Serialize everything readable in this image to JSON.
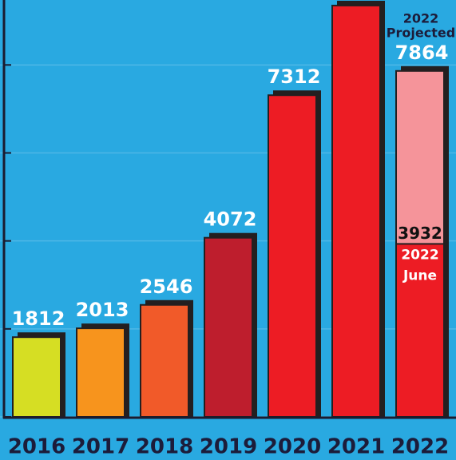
{
  "chart_data": {
    "type": "bar",
    "categories": [
      "2016",
      "2017",
      "2018",
      "2019",
      "2020",
      "2021",
      "2022"
    ],
    "values": [
      1812,
      2013,
      2546,
      4072,
      7312,
      9350,
      7864
    ],
    "value_labels": [
      "1812",
      "2013",
      "2546",
      "4072",
      "7312",
      null,
      "7864"
    ],
    "colors": [
      "#d6de23",
      "#f7941d",
      "#f15a29",
      "#be1e2d",
      "#ed1c24",
      "#ed1c24",
      "#f5949a"
    ],
    "projection_note": [
      "2022",
      "Projected"
    ],
    "partial": {
      "value": 3932,
      "label": "3932",
      "label_lines": [
        "2022",
        "June"
      ],
      "color": "#ed1c24"
    },
    "ylim": [
      0,
      9440
    ],
    "yticks": [
      0,
      2000,
      4000,
      6000,
      8000
    ],
    "grid": true
  }
}
